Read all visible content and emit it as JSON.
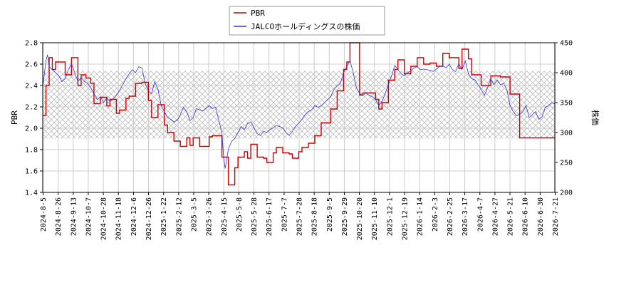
{
  "chart_data": {
    "type": "line",
    "title": "",
    "xlabel": "",
    "ylabel": "PBR",
    "y2label": "株価",
    "ylim": [
      1.4,
      2.8
    ],
    "y2lim": [
      200,
      450
    ],
    "yticks": [
      "1.4",
      "1.6",
      "1.8",
      "2.0",
      "2.2",
      "2.4",
      "2.6",
      "2.8"
    ],
    "y2ticks": [
      "200",
      "250",
      "300",
      "350",
      "400",
      "450"
    ],
    "xticks": [
      "2024-8-5",
      "2024-8-26",
      "2024-9-13",
      "2024-10-7",
      "2024-10-28",
      "2024-11-18",
      "2024-12-6",
      "2024-12-26",
      "2025-1-22",
      "2025-2-12",
      "2025-3-5",
      "2025-3-26",
      "2025-4-15",
      "2025-5-8",
      "2025-5-28",
      "2025-6-17",
      "2025-7-7",
      "2025-7-28",
      "2025-8-18",
      "2025-9-5",
      "2025-9-29",
      "2025-10-20",
      "2025-11-10",
      "2025-12-1",
      "2025-12-19",
      "2026-1-14",
      "2026-2-3",
      "2026-2-25",
      "2026-3-17",
      "2026-4-7",
      "2026-4-27",
      "2026-5-21",
      "2026-6-10",
      "2026-6-30",
      "2026-7-21"
    ],
    "grid": true,
    "legend_position": "top-center",
    "colors": {
      "pbr": "#cc0000",
      "price": "#3333dd",
      "band_hatch": "#aaaaaa",
      "grid": "#cccccc"
    },
    "band": {
      "axis": "y2",
      "from": 290,
      "to": 403
    },
    "series": [
      {
        "name": "PBR",
        "axis": "y",
        "color": "#cc0000",
        "values": [
          [
            0,
            2.12
          ],
          [
            2,
            2.4
          ],
          [
            4,
            2.66
          ],
          [
            6,
            2.55
          ],
          [
            8,
            2.62
          ],
          [
            12,
            2.62
          ],
          [
            14,
            2.5
          ],
          [
            16,
            2.5
          ],
          [
            18,
            2.66
          ],
          [
            20,
            2.66
          ],
          [
            22,
            2.4
          ],
          [
            24,
            2.5
          ],
          [
            27,
            2.47
          ],
          [
            30,
            2.42
          ],
          [
            32,
            2.23
          ],
          [
            34,
            2.23
          ],
          [
            36,
            2.29
          ],
          [
            38,
            2.29
          ],
          [
            40,
            2.21
          ],
          [
            42,
            2.27
          ],
          [
            44,
            2.27
          ],
          [
            46,
            2.14
          ],
          [
            48,
            2.17
          ],
          [
            50,
            2.17
          ],
          [
            52,
            2.28
          ],
          [
            54,
            2.3
          ],
          [
            56,
            2.3
          ],
          [
            58,
            2.42
          ],
          [
            62,
            2.43
          ],
          [
            64,
            2.43
          ],
          [
            66,
            2.26
          ],
          [
            68,
            2.1
          ],
          [
            70,
            2.1
          ],
          [
            72,
            2.22
          ],
          [
            74,
            2.22
          ],
          [
            76,
            2.03
          ],
          [
            78,
            1.96
          ],
          [
            80,
            1.96
          ],
          [
            82,
            1.88
          ],
          [
            84,
            1.88
          ],
          [
            86,
            1.83
          ],
          [
            88,
            1.83
          ],
          [
            90,
            1.91
          ],
          [
            92,
            1.84
          ],
          [
            94,
            1.91
          ],
          [
            96,
            1.91
          ],
          [
            98,
            1.83
          ],
          [
            102,
            1.83
          ],
          [
            104,
            1.92
          ],
          [
            106,
            1.93
          ],
          [
            108,
            1.93
          ],
          [
            110,
            1.93
          ],
          [
            112,
            1.73
          ],
          [
            114,
            1.73
          ],
          [
            116,
            1.47
          ],
          [
            118,
            1.47
          ],
          [
            120,
            1.63
          ],
          [
            122,
            1.73
          ],
          [
            124,
            1.73
          ],
          [
            126,
            1.78
          ],
          [
            128,
            1.72
          ],
          [
            130,
            1.85
          ],
          [
            132,
            1.85
          ],
          [
            134,
            1.73
          ],
          [
            136,
            1.73
          ],
          [
            138,
            1.72
          ],
          [
            140,
            1.68
          ],
          [
            142,
            1.68
          ],
          [
            144,
            1.77
          ],
          [
            146,
            1.82
          ],
          [
            148,
            1.82
          ],
          [
            150,
            1.77
          ],
          [
            152,
            1.77
          ],
          [
            154,
            1.76
          ],
          [
            156,
            1.72
          ],
          [
            158,
            1.72
          ],
          [
            160,
            1.78
          ],
          [
            162,
            1.82
          ],
          [
            164,
            1.82
          ],
          [
            166,
            1.86
          ],
          [
            168,
            1.86
          ],
          [
            170,
            1.93
          ],
          [
            172,
            1.93
          ],
          [
            174,
            2.05
          ],
          [
            176,
            2.05
          ],
          [
            178,
            2.05
          ],
          [
            180,
            2.18
          ],
          [
            182,
            2.18
          ],
          [
            184,
            2.35
          ],
          [
            186,
            2.35
          ],
          [
            188,
            2.55
          ],
          [
            190,
            2.62
          ],
          [
            192,
            2.8
          ],
          [
            196,
            2.8
          ],
          [
            198,
            2.31
          ],
          [
            200,
            2.33
          ],
          [
            202,
            2.33
          ],
          [
            206,
            2.33
          ],
          [
            208,
            2.27
          ],
          [
            210,
            2.18
          ],
          [
            212,
            2.24
          ],
          [
            214,
            2.24
          ],
          [
            216,
            2.45
          ],
          [
            218,
            2.45
          ],
          [
            220,
            2.55
          ],
          [
            222,
            2.64
          ],
          [
            224,
            2.64
          ],
          [
            226,
            2.51
          ],
          [
            228,
            2.51
          ],
          [
            230,
            2.58
          ],
          [
            232,
            2.58
          ],
          [
            234,
            2.66
          ],
          [
            236,
            2.66
          ],
          [
            238,
            2.6
          ],
          [
            242,
            2.61
          ],
          [
            244,
            2.61
          ],
          [
            246,
            2.58
          ],
          [
            248,
            2.58
          ],
          [
            250,
            2.7
          ],
          [
            252,
            2.7
          ],
          [
            254,
            2.66
          ],
          [
            258,
            2.66
          ],
          [
            260,
            2.56
          ],
          [
            262,
            2.74
          ],
          [
            264,
            2.74
          ],
          [
            266,
            2.65
          ],
          [
            268,
            2.5
          ],
          [
            272,
            2.5
          ],
          [
            274,
            2.4
          ],
          [
            276,
            2.4
          ],
          [
            278,
            2.4
          ],
          [
            280,
            2.49
          ],
          [
            284,
            2.49
          ],
          [
            286,
            2.48
          ],
          [
            290,
            2.48
          ],
          [
            292,
            2.32
          ],
          [
            296,
            2.32
          ],
          [
            298,
            1.91
          ],
          [
            320,
            1.91
          ]
        ]
      },
      {
        "name": "JALCOホールディングスの株価",
        "axis": "y2",
        "color": "#3333dd",
        "values": [
          [
            0,
            375
          ],
          [
            2,
            420
          ],
          [
            3,
            430
          ],
          [
            4,
            410
          ],
          [
            6,
            405
          ],
          [
            8,
            400
          ],
          [
            10,
            395
          ],
          [
            12,
            385
          ],
          [
            14,
            390
          ],
          [
            16,
            405
          ],
          [
            18,
            415
          ],
          [
            20,
            400
          ],
          [
            22,
            385
          ],
          [
            24,
            392
          ],
          [
            26,
            386
          ],
          [
            28,
            382
          ],
          [
            30,
            375
          ],
          [
            32,
            365
          ],
          [
            34,
            355
          ],
          [
            36,
            360
          ],
          [
            38,
            350
          ],
          [
            40,
            358
          ],
          [
            42,
            352
          ],
          [
            44,
            356
          ],
          [
            46,
            362
          ],
          [
            48,
            370
          ],
          [
            50,
            380
          ],
          [
            52,
            390
          ],
          [
            54,
            398
          ],
          [
            56,
            405
          ],
          [
            58,
            400
          ],
          [
            60,
            410
          ],
          [
            62,
            408
          ],
          [
            64,
            382
          ],
          [
            66,
            370
          ],
          [
            68,
            365
          ],
          [
            70,
            385
          ],
          [
            72,
            372
          ],
          [
            74,
            345
          ],
          [
            76,
            335
          ],
          [
            78,
            325
          ],
          [
            80,
            322
          ],
          [
            82,
            318
          ],
          [
            84,
            320
          ],
          [
            86,
            330
          ],
          [
            88,
            342
          ],
          [
            90,
            335
          ],
          [
            92,
            320
          ],
          [
            94,
            325
          ],
          [
            96,
            340
          ],
          [
            98,
            338
          ],
          [
            100,
            336
          ],
          [
            102,
            340
          ],
          [
            104,
            345
          ],
          [
            106,
            340
          ],
          [
            108,
            342
          ],
          [
            110,
            320
          ],
          [
            112,
            300
          ],
          [
            113,
            260
          ],
          [
            114,
            240
          ],
          [
            116,
            272
          ],
          [
            118,
            285
          ],
          [
            120,
            290
          ],
          [
            122,
            300
          ],
          [
            124,
            310
          ],
          [
            126,
            305
          ],
          [
            128,
            315
          ],
          [
            130,
            318
          ],
          [
            132,
            308
          ],
          [
            134,
            298
          ],
          [
            136,
            295
          ],
          [
            138,
            302
          ],
          [
            140,
            300
          ],
          [
            142,
            305
          ],
          [
            144,
            308
          ],
          [
            146,
            312
          ],
          [
            148,
            310
          ],
          [
            150,
            308
          ],
          [
            152,
            300
          ],
          [
            154,
            295
          ],
          [
            156,
            302
          ],
          [
            158,
            310
          ],
          [
            160,
            316
          ],
          [
            162,
            322
          ],
          [
            164,
            330
          ],
          [
            166,
            335
          ],
          [
            168,
            338
          ],
          [
            170,
            345
          ],
          [
            172,
            342
          ],
          [
            174,
            345
          ],
          [
            176,
            350
          ],
          [
            178,
            355
          ],
          [
            180,
            360
          ],
          [
            182,
            372
          ],
          [
            184,
            378
          ],
          [
            186,
            382
          ],
          [
            188,
            400
          ],
          [
            190,
            410
          ],
          [
            192,
            420
          ],
          [
            194,
            400
          ],
          [
            196,
            375
          ],
          [
            198,
            365
          ],
          [
            200,
            362
          ],
          [
            202,
            366
          ],
          [
            204,
            362
          ],
          [
            206,
            360
          ],
          [
            208,
            355
          ],
          [
            210,
            345
          ],
          [
            212,
            352
          ],
          [
            214,
            365
          ],
          [
            216,
            380
          ],
          [
            218,
            395
          ],
          [
            220,
            412
          ],
          [
            222,
            405
          ],
          [
            224,
            398
          ],
          [
            226,
            395
          ],
          [
            228,
            400
          ],
          [
            230,
            403
          ],
          [
            232,
            408
          ],
          [
            234,
            410
          ],
          [
            236,
            405
          ],
          [
            238,
            406
          ],
          [
            240,
            405
          ],
          [
            242,
            404
          ],
          [
            244,
            402
          ],
          [
            246,
            406
          ],
          [
            248,
            410
          ],
          [
            250,
            412
          ],
          [
            252,
            408
          ],
          [
            254,
            414
          ],
          [
            256,
            405
          ],
          [
            258,
            402
          ],
          [
            260,
            415
          ],
          [
            262,
            405
          ],
          [
            264,
            420
          ],
          [
            266,
            398
          ],
          [
            268,
            390
          ],
          [
            270,
            388
          ],
          [
            272,
            380
          ],
          [
            274,
            372
          ],
          [
            276,
            362
          ],
          [
            278,
            375
          ],
          [
            280,
            390
          ],
          [
            282,
            380
          ],
          [
            284,
            388
          ],
          [
            286,
            380
          ],
          [
            288,
            382
          ],
          [
            290,
            372
          ],
          [
            292,
            345
          ],
          [
            294,
            335
          ],
          [
            296,
            328
          ],
          [
            298,
            330
          ],
          [
            300,
            335
          ],
          [
            302,
            345
          ],
          [
            304,
            325
          ],
          [
            306,
            330
          ],
          [
            308,
            335
          ],
          [
            310,
            322
          ],
          [
            312,
            326
          ],
          [
            314,
            342
          ],
          [
            316,
            345
          ],
          [
            318,
            350
          ],
          [
            320,
            348
          ]
        ]
      }
    ]
  }
}
